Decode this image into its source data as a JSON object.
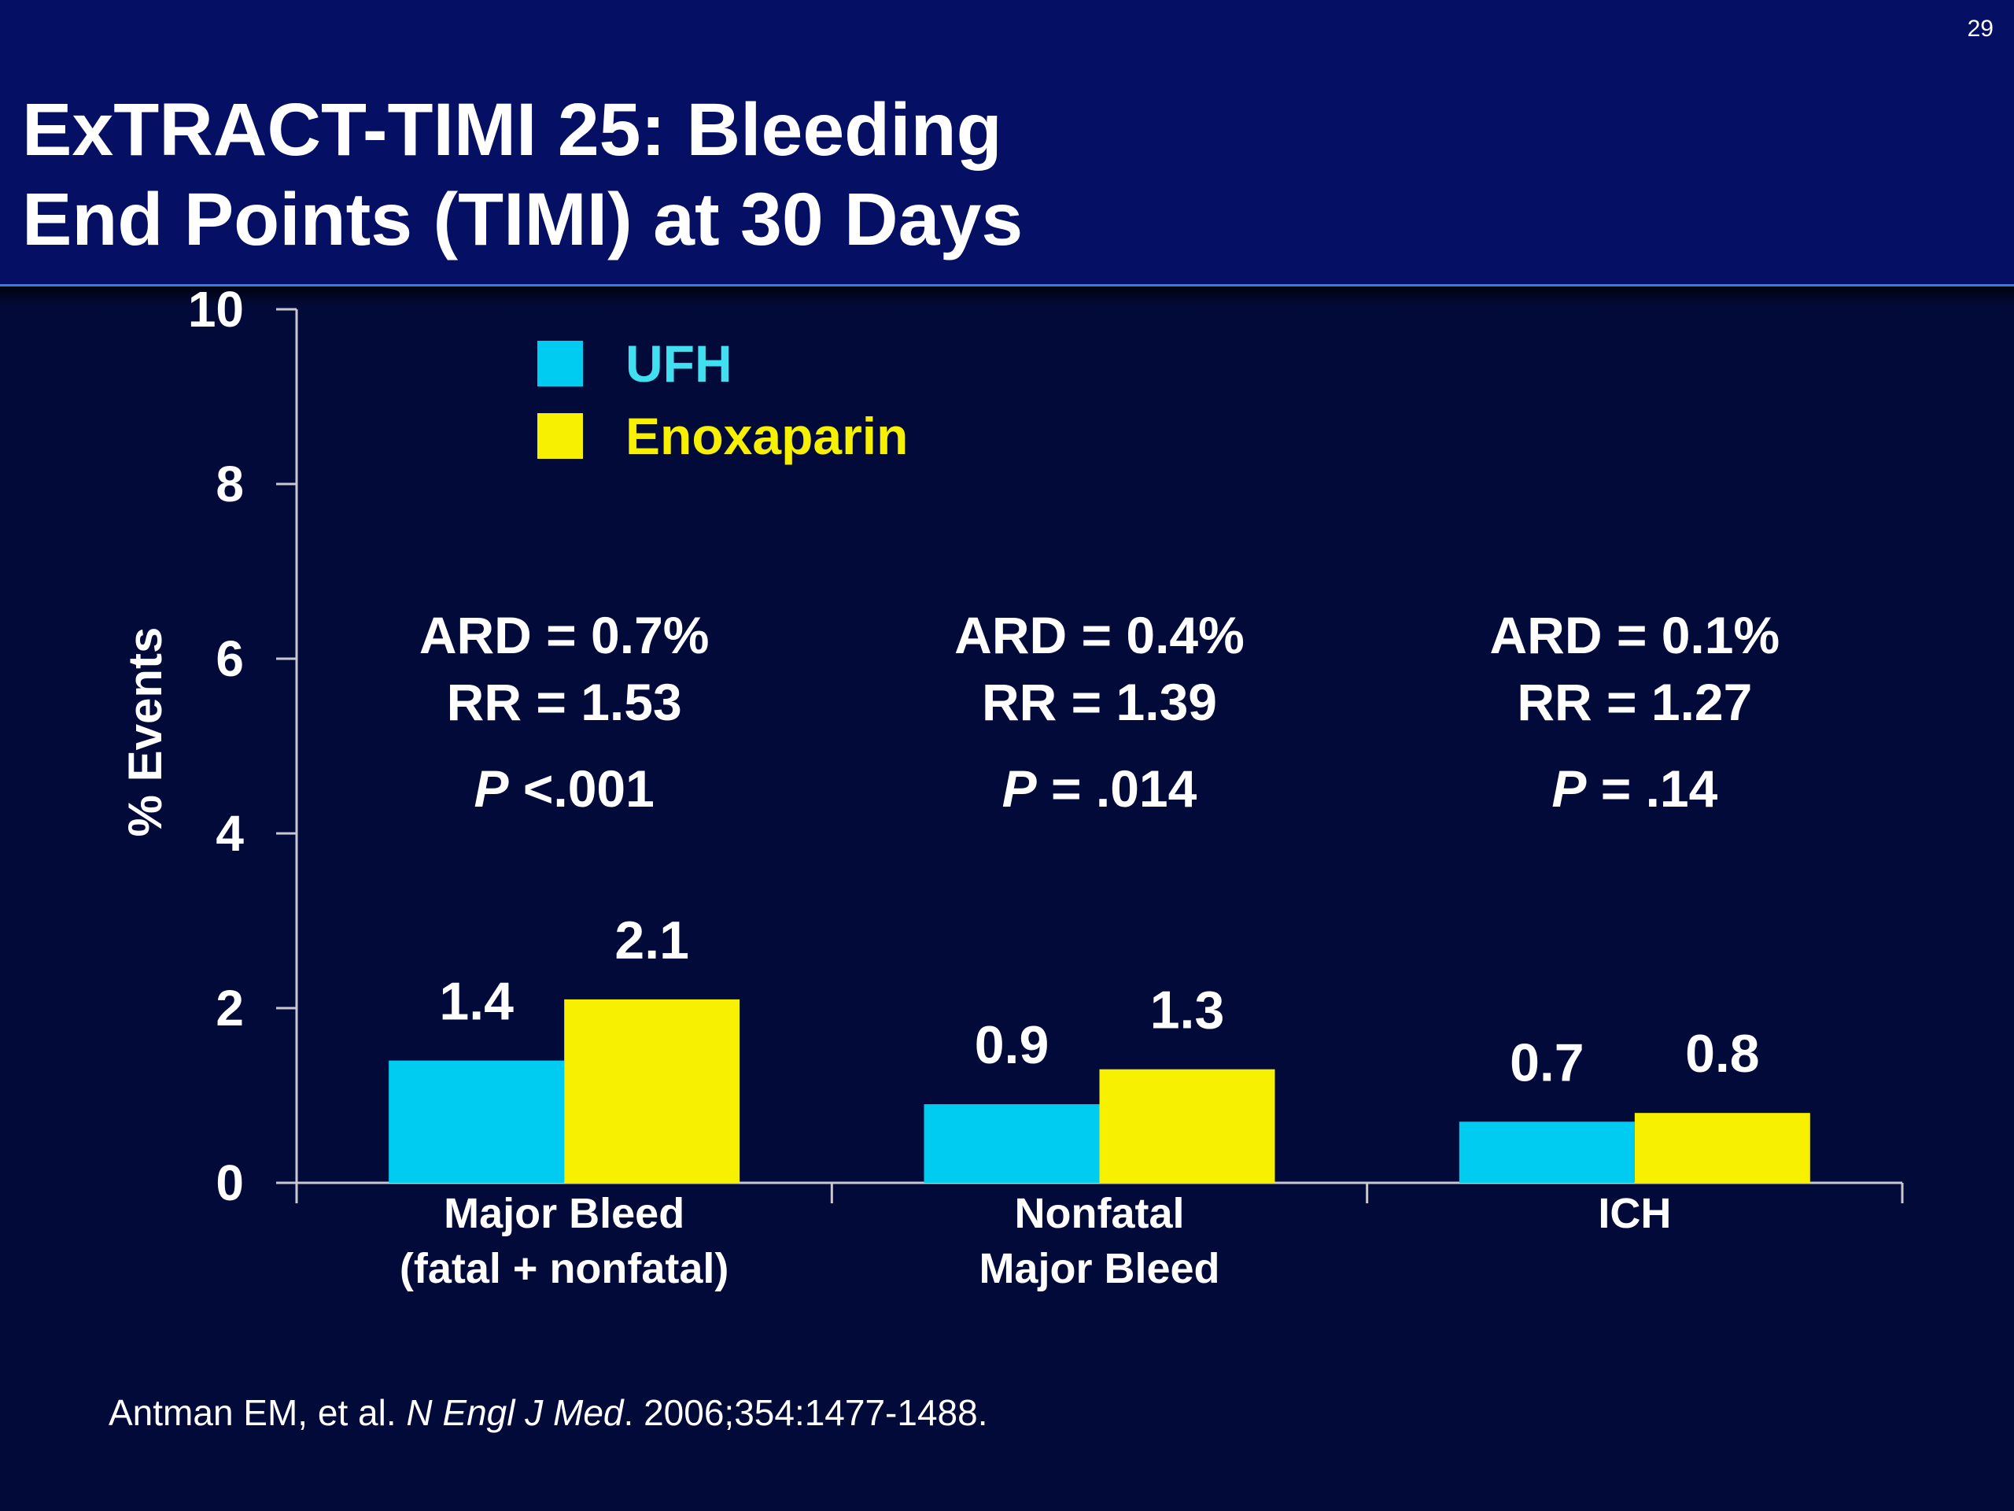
{
  "slide": {
    "number": "29",
    "title_line1": "ExTRACT-TIMI 25: Bleeding",
    "title_line2": "End Points (TIMI) at 30 Days"
  },
  "citation": {
    "authors": "Antman EM, et al. ",
    "journal": "N Engl J Med",
    "details": ". 2006;354:1477-1488."
  },
  "chart_data": {
    "type": "bar",
    "ylabel": "% Events",
    "ylim": [
      0,
      10
    ],
    "yticks": [
      0,
      2,
      4,
      6,
      8,
      10
    ],
    "categories": [
      [
        "Major Bleed",
        "(fatal + nonfatal)"
      ],
      [
        "Nonfatal",
        "Major Bleed"
      ],
      [
        "ICH"
      ]
    ],
    "series": [
      {
        "name": "UFH",
        "color": "#00ccf2",
        "values": [
          1.4,
          0.9,
          0.7
        ],
        "labels": [
          "1.4",
          "0.9",
          "0.7"
        ]
      },
      {
        "name": "Enoxaparin",
        "color": "#f7f000",
        "values": [
          2.1,
          1.3,
          0.8
        ],
        "labels": [
          "2.1",
          "1.3",
          "0.8"
        ]
      }
    ],
    "legend": {
      "placement": "top-left",
      "UFH_text_color": "#40e0f0",
      "Enoxaparin_text_color": "#f7f000"
    },
    "annotations": [
      {
        "ard": "ARD = 0.7%",
        "rr": "RR = 1.53",
        "p_symbol": "P",
        "p_rest": " <.001"
      },
      {
        "ard": "ARD = 0.4%",
        "rr": "RR = 1.39",
        "p_symbol": "P",
        "p_rest": " = .014"
      },
      {
        "ard": "ARD = 0.1%",
        "rr": "RR = 1.27",
        "p_symbol": "P",
        "p_rest": " = .14"
      }
    ]
  }
}
